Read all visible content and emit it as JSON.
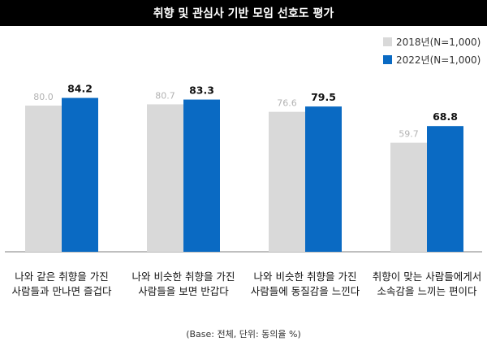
{
  "title": "취향 및 관심사 기반 모임 선호도 평가",
  "base_note": "(Base: 전체, 단위: 동의율 %)",
  "colors": {
    "s2018": "#d9d9d9",
    "s2022": "#0a6ac3",
    "axis": "#7f7f7f"
  },
  "chart_data": {
    "type": "bar",
    "categories": [
      [
        "나와 같은 취향을 가진",
        "사람들과 만나면 즐겁다"
      ],
      [
        "나와 비슷한 취향을 가진",
        "사람들을 보면 반갑다"
      ],
      [
        "나와 비슷한 취향을 가진",
        "사람들에 동질감을 느낀다"
      ],
      [
        "취향이 맞는 사람들에게서",
        "소속감을 느끼는 편이다"
      ]
    ],
    "series": [
      {
        "name": "2018년(N=1,000)",
        "values": [
          80.0,
          80.7,
          76.6,
          59.7
        ],
        "labels": [
          "80.0",
          "80.7",
          "76.6",
          "59.7"
        ]
      },
      {
        "name": "2022년(N=1,000)",
        "values": [
          84.2,
          83.3,
          79.5,
          68.8
        ],
        "labels": [
          "84.2",
          "83.3",
          "79.5",
          "68.8"
        ]
      }
    ],
    "ylim": [
      0,
      100
    ],
    "legend_position": "top-right",
    "grid": false
  }
}
